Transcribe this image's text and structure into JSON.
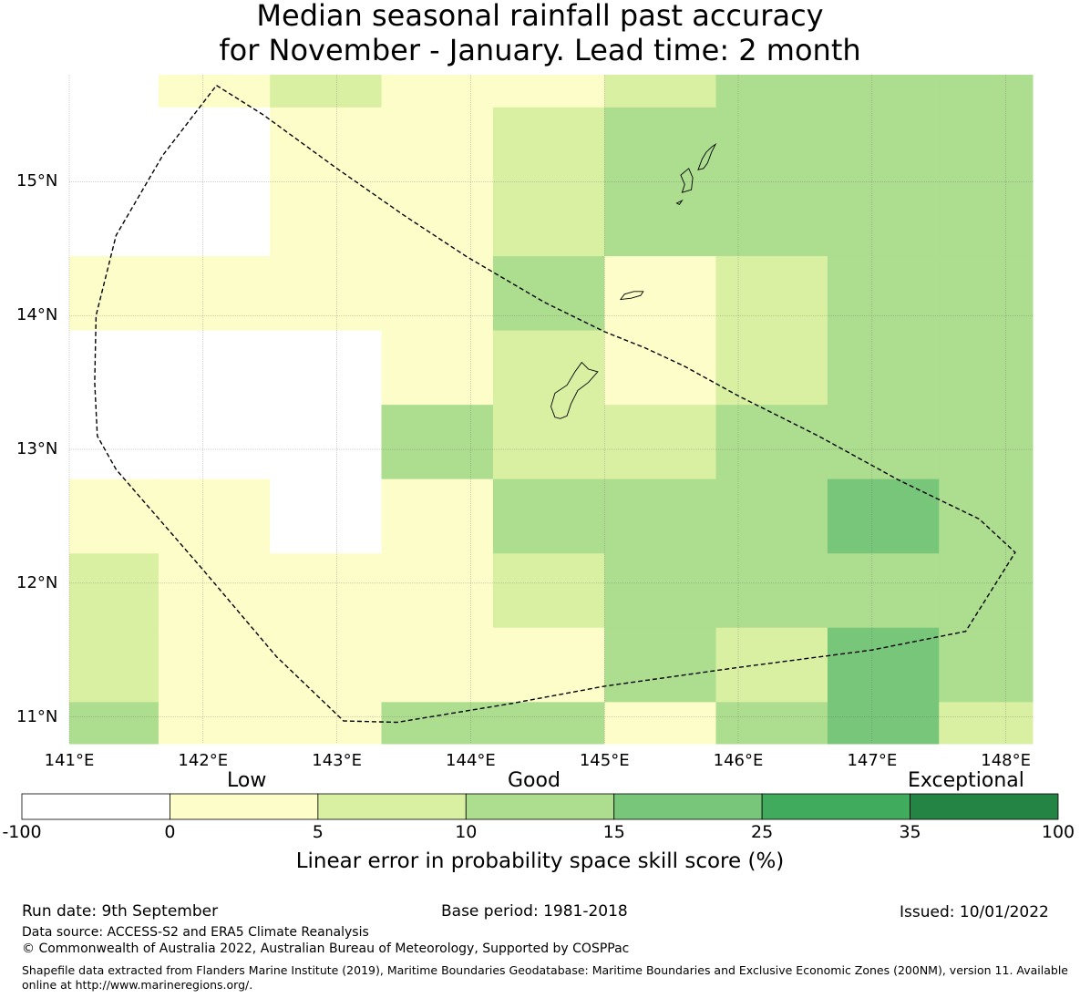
{
  "title": {
    "line1": "Median seasonal rainfall past accuracy",
    "line2": "for November - January. Lead time: 2 month"
  },
  "map": {
    "lat_range": [
      10.8,
      15.8
    ],
    "lon_range": [
      141.0,
      148.2
    ],
    "lat_ticks": [
      {
        "value": 15,
        "label": "15°N"
      },
      {
        "value": 14,
        "label": "14°N"
      },
      {
        "value": 13,
        "label": "13°N"
      },
      {
        "value": 12,
        "label": "12°N"
      },
      {
        "value": 11,
        "label": "11°N"
      }
    ],
    "lon_ticks": [
      {
        "value": 141,
        "label": "141°E"
      },
      {
        "value": 142,
        "label": "142°E"
      },
      {
        "value": 143,
        "label": "143°E"
      },
      {
        "value": 144,
        "label": "144°E"
      },
      {
        "value": 145,
        "label": "145°E"
      },
      {
        "value": 146,
        "label": "146°E"
      },
      {
        "value": 147,
        "label": "147°E"
      },
      {
        "value": 148,
        "label": "148°E"
      }
    ],
    "grid_lon_edges": [
      141.0,
      141.667,
      142.5,
      143.333,
      144.167,
      145.0,
      145.833,
      146.667,
      147.5,
      148.2
    ],
    "grid_lat_edges": [
      15.8,
      15.556,
      14.444,
      13.889,
      13.333,
      12.778,
      12.222,
      11.667,
      11.111,
      10.8
    ],
    "grid_classes": [
      [
        -1,
        1,
        2,
        1,
        1,
        2,
        3,
        3,
        3
      ],
      [
        -1,
        -1,
        1,
        1,
        2,
        3,
        3,
        3,
        3
      ],
      [
        1,
        1,
        1,
        1,
        3,
        1,
        2,
        3,
        3
      ],
      [
        -1,
        -1,
        -1,
        1,
        2,
        1,
        2,
        3,
        3
      ],
      [
        -1,
        -1,
        -1,
        3,
        2,
        2,
        3,
        3,
        3
      ],
      [
        1,
        1,
        -1,
        1,
        3,
        3,
        3,
        4,
        3
      ],
      [
        2,
        1,
        1,
        1,
        2,
        3,
        3,
        3,
        3
      ],
      [
        2,
        1,
        1,
        1,
        1,
        3,
        2,
        4,
        3
      ],
      [
        3,
        1,
        1,
        3,
        3,
        1,
        3,
        4,
        2
      ]
    ],
    "eez_boundary": [
      [
        142.1,
        15.72
      ],
      [
        142.45,
        15.5
      ],
      [
        143.0,
        15.1
      ],
      [
        143.5,
        14.75
      ],
      [
        143.97,
        14.44
      ],
      [
        144.55,
        14.1
      ],
      [
        145.0,
        13.88
      ],
      [
        145.3,
        13.76
      ],
      [
        145.6,
        13.62
      ],
      [
        146.0,
        13.4
      ],
      [
        146.6,
        13.1
      ],
      [
        147.2,
        12.77
      ],
      [
        147.8,
        12.48
      ],
      [
        148.07,
        12.23
      ],
      [
        147.7,
        11.64
      ],
      [
        147.0,
        11.5
      ],
      [
        146.0,
        11.37
      ],
      [
        145.0,
        11.23
      ],
      [
        144.3,
        11.1
      ],
      [
        143.45,
        10.96
      ],
      [
        143.05,
        10.97
      ],
      [
        142.55,
        11.45
      ],
      [
        142.0,
        12.1
      ],
      [
        141.35,
        12.85
      ],
      [
        141.21,
        13.1
      ],
      [
        141.19,
        13.5
      ],
      [
        141.2,
        14.0
      ],
      [
        141.35,
        14.6
      ],
      [
        141.7,
        15.2
      ],
      [
        142.1,
        15.72
      ]
    ],
    "islands": [
      [
        [
          144.63,
          13.24
        ],
        [
          144.6,
          13.32
        ],
        [
          144.63,
          13.42
        ],
        [
          144.72,
          13.48
        ],
        [
          144.78,
          13.58
        ],
        [
          144.83,
          13.65
        ],
        [
          144.88,
          13.6
        ],
        [
          144.95,
          13.58
        ],
        [
          144.88,
          13.5
        ],
        [
          144.8,
          13.44
        ],
        [
          144.75,
          13.34
        ],
        [
          144.72,
          13.25
        ],
        [
          144.67,
          13.23
        ],
        [
          144.63,
          13.24
        ]
      ],
      [
        [
          145.12,
          14.12
        ],
        [
          145.15,
          14.16
        ],
        [
          145.22,
          14.18
        ],
        [
          145.29,
          14.18
        ],
        [
          145.27,
          14.15
        ],
        [
          145.2,
          14.13
        ],
        [
          145.12,
          14.12
        ]
      ],
      [
        [
          145.58,
          14.92
        ],
        [
          145.6,
          14.98
        ],
        [
          145.57,
          15.05
        ],
        [
          145.63,
          15.1
        ],
        [
          145.66,
          15.03
        ],
        [
          145.65,
          14.94
        ],
        [
          145.58,
          14.92
        ]
      ],
      [
        [
          145.7,
          15.09
        ],
        [
          145.73,
          15.17
        ],
        [
          145.76,
          15.22
        ],
        [
          145.8,
          15.26
        ],
        [
          145.83,
          15.28
        ],
        [
          145.8,
          15.22
        ],
        [
          145.77,
          15.14
        ],
        [
          145.74,
          15.1
        ],
        [
          145.7,
          15.09
        ]
      ],
      [
        [
          145.54,
          14.84
        ],
        [
          145.58,
          14.86
        ],
        [
          145.56,
          14.83
        ],
        [
          145.54,
          14.84
        ]
      ]
    ]
  },
  "colorbar": {
    "category_labels": {
      "low": "Low",
      "good": "Good",
      "exceptional": "Exceptional"
    },
    "bounds": [
      "-100",
      "0",
      "5",
      "10",
      "15",
      "25",
      "35",
      "100"
    ],
    "colors": [
      "#ffffff",
      "#fdfdc9",
      "#d9f0a3",
      "#addd8e",
      "#78c679",
      "#41ab5d",
      "#238443"
    ],
    "title": "Linear error in probability space skill score (%)"
  },
  "footer": {
    "run_date": "Run date: 9th September",
    "base_period": "Base period: 1981-2018",
    "issued": "Issued: 10/01/2022",
    "data_source": "Data source: ACCESS-S2 and ERA5 Climate Reanalysis",
    "copyright": "© Commonwealth of Australia 2022, Australian Bureau of Meteorology, Supported by COSPPac",
    "shapefile": "Shapefile data extracted from Flanders Marine Institute (2019), Maritime Boundaries Geodatabase: Maritime Boundaries and Exclusive Economic Zones (200NM), version 11. Available online at http://www.marineregions.org/."
  }
}
